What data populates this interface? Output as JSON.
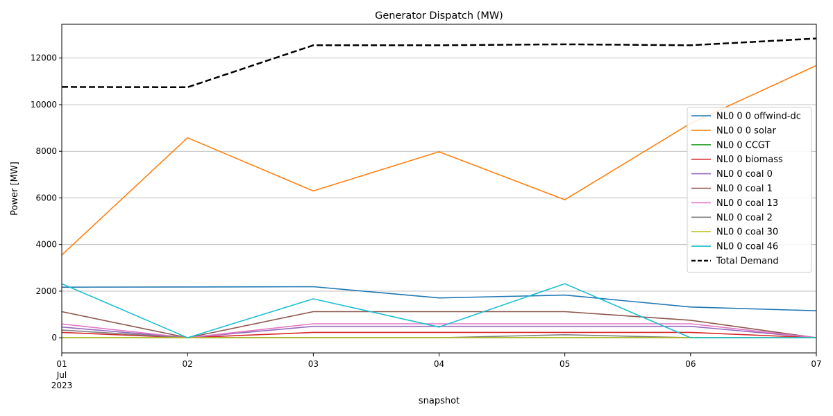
{
  "chart_data": {
    "type": "line",
    "title": "Generator Dispatch (MW)",
    "xlabel": "snapshot",
    "ylabel": "Power [MW]",
    "x": [
      "2023-07-01",
      "2023-07-02",
      "2023-07-03",
      "2023-07-04",
      "2023-07-05",
      "2023-07-06",
      "2023-07-07"
    ],
    "x_tick_labels": [
      "01",
      "02",
      "03",
      "04",
      "05",
      "06",
      "07"
    ],
    "x_tick_sublabels": [
      "Jul",
      "2023"
    ],
    "ylim": [
      -650,
      13450
    ],
    "y_ticks": [
      0,
      2000,
      4000,
      6000,
      8000,
      10000,
      12000
    ],
    "y_tick_labels": [
      "0",
      "2000",
      "4000",
      "6000",
      "8000",
      "10000",
      "12000"
    ],
    "grid": "y",
    "legend_position": "right",
    "series": [
      {
        "name": "NL0 0 0 offwind-dc",
        "color": "#1f77b4",
        "dash": "solid",
        "values": [
          2170,
          2180,
          2190,
          1710,
          1830,
          1320,
          1160
        ]
      },
      {
        "name": "NL0 0 0 solar",
        "color": "#ff7f0e",
        "dash": "solid",
        "values": [
          3550,
          8580,
          6300,
          7980,
          5920,
          9200,
          11680
        ]
      },
      {
        "name": "NL0 0 CCGT",
        "color": "#2ca02c",
        "dash": "solid",
        "values": [
          0,
          0,
          0,
          0,
          0,
          0,
          0
        ]
      },
      {
        "name": "NL0 0 biomass",
        "color": "#d62728",
        "dash": "solid",
        "values": [
          230,
          0,
          230,
          230,
          230,
          230,
          0
        ]
      },
      {
        "name": "NL0 0 coal 0",
        "color": "#9467bd",
        "dash": "solid",
        "values": [
          460,
          0,
          490,
          490,
          490,
          490,
          0
        ]
      },
      {
        "name": "NL0 0 coal 1",
        "color": "#8c564b",
        "dash": "solid",
        "values": [
          1120,
          0,
          1120,
          1120,
          1120,
          750,
          0
        ]
      },
      {
        "name": "NL0 0 coal 13",
        "color": "#e377c2",
        "dash": "solid",
        "values": [
          590,
          0,
          600,
          600,
          600,
          600,
          0
        ]
      },
      {
        "name": "NL0 0 coal 2",
        "color": "#7f7f7f",
        "dash": "solid",
        "values": [
          330,
          0,
          0,
          0,
          130,
          0,
          0
        ]
      },
      {
        "name": "NL0 0 coal 30",
        "color": "#bcbd22",
        "dash": "solid",
        "values": [
          0,
          0,
          0,
          0,
          0,
          0,
          0
        ]
      },
      {
        "name": "NL0 0 coal 46",
        "color": "#17becf",
        "dash": "solid",
        "values": [
          2320,
          0,
          1670,
          460,
          2320,
          0,
          0
        ]
      },
      {
        "name": "Total Demand",
        "color": "#000000",
        "dash": "dashed",
        "values": [
          10760,
          10750,
          12550,
          12550,
          12590,
          12550,
          12840
        ]
      }
    ]
  }
}
